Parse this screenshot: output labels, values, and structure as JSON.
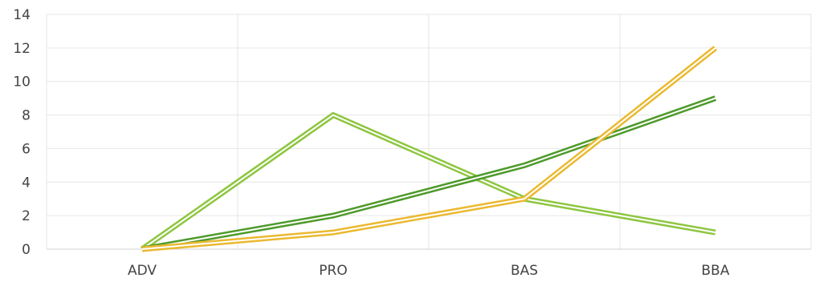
{
  "chart_data": {
    "type": "line",
    "title": "",
    "xlabel": "",
    "ylabel": "",
    "categories": [
      "ADV",
      "PRO",
      "BAS",
      "BBA"
    ],
    "ylim": [
      0,
      14
    ],
    "yticks": [
      0,
      2,
      4,
      6,
      8,
      10,
      12,
      14
    ],
    "grid": true,
    "legend": "none",
    "series": [
      {
        "values": [
          0,
          8,
          3,
          1
        ],
        "color": "#8dc63f"
      },
      {
        "values": [
          0,
          2,
          5,
          9
        ],
        "color": "#4e9a2a"
      },
      {
        "values": [
          0,
          1,
          3,
          12
        ],
        "color": "#eab930"
      }
    ]
  }
}
